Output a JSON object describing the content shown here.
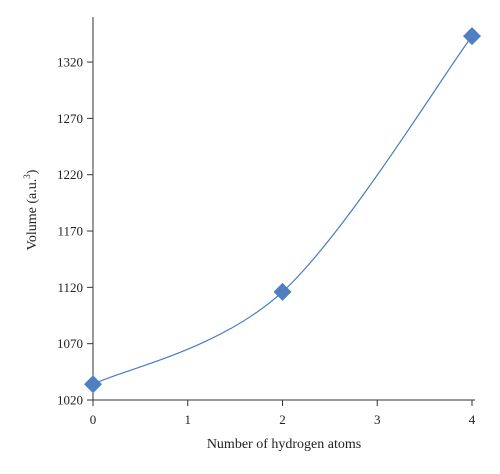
{
  "chart_data": {
    "type": "line",
    "title": "",
    "xlabel": "Number of hydrogen atoms",
    "ylabel": "Volume (a.u.",
    "ylabel_superscript": "3",
    "ylabel_suffix": ")",
    "x": [
      0,
      2,
      4
    ],
    "values": [
      1034,
      1116,
      1343
    ],
    "xlim": [
      0,
      4
    ],
    "ylim": [
      1020,
      1360
    ],
    "xticks": [
      0,
      1,
      2,
      3,
      4
    ],
    "yticks": [
      1020,
      1070,
      1120,
      1170,
      1220,
      1270,
      1320
    ],
    "xtick_labels": [
      "0",
      "1",
      "2",
      "3",
      "4"
    ],
    "ytick_labels": [
      "1020",
      "1070",
      "1120",
      "1170",
      "1220",
      "1270",
      "1320"
    ],
    "grid": false,
    "legend": "none",
    "marker": "diamond",
    "line_style": "smooth",
    "series_color": "#4a7dc0",
    "marker_color": "#4f7fc1"
  }
}
